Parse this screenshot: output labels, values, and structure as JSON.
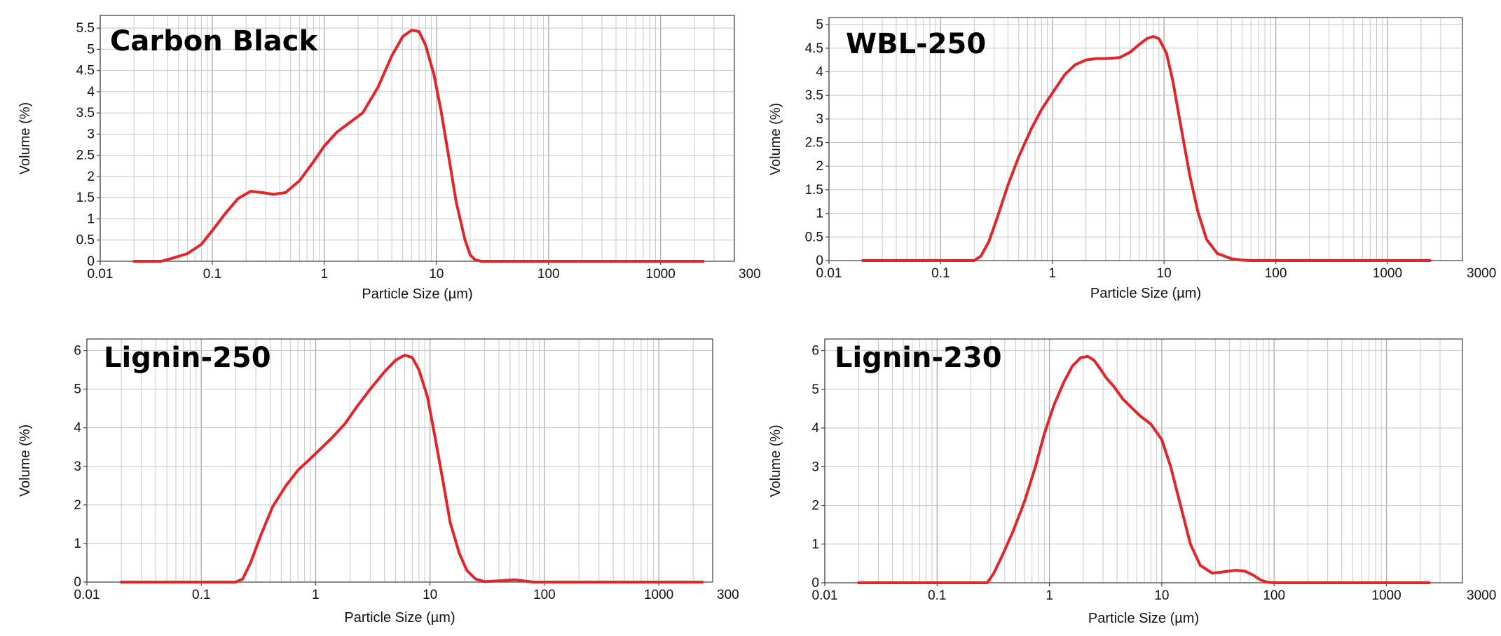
{
  "chart_data": [
    {
      "type": "line",
      "title": "Carbon Black",
      "xlabel": "Particle Size (µm)",
      "ylabel": "Volume (%)",
      "x_scale": "log",
      "xlim": [
        0.01,
        3000
      ],
      "ylim": [
        0,
        5.8
      ],
      "x_ticks": [
        "0.01",
        "0.1",
        "1",
        "10",
        "100",
        "1000"
      ],
      "x_end_label": "300",
      "y_ticks": [
        "0",
        "0.5",
        "1",
        "1.5",
        "2",
        "2.5",
        "3",
        "3.5",
        "4",
        "4.5",
        "5",
        "5.5"
      ],
      "color": "#e0262b",
      "series": [
        {
          "name": "Carbon Black",
          "x": [
            0.02,
            0.035,
            0.045,
            0.06,
            0.08,
            0.1,
            0.13,
            0.17,
            0.22,
            0.28,
            0.35,
            0.45,
            0.6,
            0.8,
            1.0,
            1.3,
            1.7,
            2.2,
            3.0,
            4.0,
            5.0,
            6.0,
            7.0,
            8.0,
            9.5,
            11,
            13,
            15,
            18,
            20,
            22,
            25,
            30,
            2400
          ],
          "y": [
            0,
            0,
            0.08,
            0.18,
            0.4,
            0.72,
            1.12,
            1.48,
            1.65,
            1.62,
            1.58,
            1.62,
            1.9,
            2.35,
            2.72,
            3.05,
            3.28,
            3.5,
            4.1,
            4.85,
            5.3,
            5.45,
            5.42,
            5.1,
            4.4,
            3.55,
            2.4,
            1.4,
            0.5,
            0.15,
            0.04,
            0,
            0,
            0
          ]
        }
      ]
    },
    {
      "type": "line",
      "title": "WBL-250",
      "xlabel": "Particle Size (µm)",
      "ylabel": "Volume (%)",
      "x_scale": "log",
      "xlim": [
        0.01,
        3000
      ],
      "ylim": [
        0,
        5.15
      ],
      "x_ticks": [
        "0.01",
        "0.1",
        "1",
        "10",
        "100",
        "1000"
      ],
      "x_end_label": "3000",
      "y_ticks": [
        "0",
        "0.5",
        "1",
        "1.5",
        "2",
        "2.5",
        "3",
        "3.5",
        "4",
        "4.5",
        "5"
      ],
      "color": "#e0262b",
      "series": [
        {
          "name": "WBL-250",
          "x": [
            0.02,
            0.2,
            0.23,
            0.27,
            0.32,
            0.4,
            0.5,
            0.65,
            0.8,
            1.0,
            1.3,
            1.6,
            2.0,
            2.5,
            3.0,
            4.0,
            5.0,
            6.0,
            7.0,
            8.0,
            9.0,
            10.5,
            12,
            14,
            17,
            20,
            24,
            30,
            40,
            50,
            60,
            2400
          ],
          "y": [
            0,
            0,
            0.1,
            0.4,
            0.9,
            1.6,
            2.2,
            2.8,
            3.2,
            3.55,
            3.95,
            4.15,
            4.25,
            4.28,
            4.28,
            4.3,
            4.42,
            4.58,
            4.7,
            4.75,
            4.7,
            4.4,
            3.8,
            2.9,
            1.8,
            1.05,
            0.45,
            0.15,
            0.04,
            0.01,
            0,
            0
          ]
        }
      ]
    },
    {
      "type": "line",
      "title": "Lignin-250",
      "xlabel": "Particle Size (µm)",
      "ylabel": "Volume (%)",
      "x_scale": "log",
      "xlim": [
        0.01,
        3000
      ],
      "ylim": [
        0,
        6.3
      ],
      "x_ticks": [
        "0.01",
        "0.1",
        "1",
        "10",
        "100",
        "1000"
      ],
      "x_end_label": "300",
      "y_ticks": [
        "0",
        "1",
        "2",
        "3",
        "4",
        "5",
        "6"
      ],
      "color": "#e0262b",
      "series": [
        {
          "name": "Lignin-250",
          "x": [
            0.02,
            0.2,
            0.23,
            0.27,
            0.33,
            0.42,
            0.55,
            0.7,
            0.9,
            1.1,
            1.4,
            1.8,
            2.3,
            3.0,
            4.0,
            5.0,
            6.0,
            7.0,
            8.0,
            9.5,
            11,
            13,
            15,
            18,
            21,
            25,
            30,
            40,
            55,
            70,
            80,
            2400
          ],
          "y": [
            0,
            0,
            0.08,
            0.5,
            1.2,
            1.95,
            2.5,
            2.9,
            3.2,
            3.45,
            3.75,
            4.1,
            4.55,
            5.0,
            5.45,
            5.75,
            5.88,
            5.82,
            5.5,
            4.8,
            3.8,
            2.6,
            1.55,
            0.75,
            0.3,
            0.08,
            0.01,
            0.03,
            0.06,
            0.02,
            0,
            0
          ]
        }
      ]
    },
    {
      "type": "line",
      "title": "Lignin-230",
      "xlabel": "Particle Size (µm)",
      "ylabel": "Volume (%)",
      "x_scale": "log",
      "xlim": [
        0.01,
        3000
      ],
      "ylim": [
        0,
        6.3
      ],
      "x_ticks": [
        "0.01",
        "0.1",
        "1",
        "10",
        "100",
        "1000"
      ],
      "x_end_label": "3000",
      "y_ticks": [
        "0",
        "1",
        "2",
        "3",
        "4",
        "5",
        "6"
      ],
      "color": "#e0262b",
      "series": [
        {
          "name": "Lignin-230",
          "x": [
            0.02,
            0.28,
            0.32,
            0.38,
            0.47,
            0.6,
            0.75,
            0.9,
            1.1,
            1.35,
            1.6,
            1.9,
            2.2,
            2.5,
            2.8,
            3.2,
            3.8,
            4.5,
            5.5,
            6.5,
            8.0,
            10,
            12,
            15,
            18,
            22,
            28,
            35,
            45,
            55,
            65,
            75,
            85,
            100,
            2400
          ],
          "y": [
            0,
            0,
            0.25,
            0.7,
            1.3,
            2.1,
            3.0,
            3.85,
            4.6,
            5.2,
            5.6,
            5.82,
            5.85,
            5.75,
            5.55,
            5.3,
            5.05,
            4.75,
            4.5,
            4.3,
            4.1,
            3.7,
            3.0,
            1.9,
            1.0,
            0.45,
            0.25,
            0.28,
            0.32,
            0.3,
            0.2,
            0.08,
            0.02,
            0,
            0
          ]
        }
      ]
    }
  ]
}
